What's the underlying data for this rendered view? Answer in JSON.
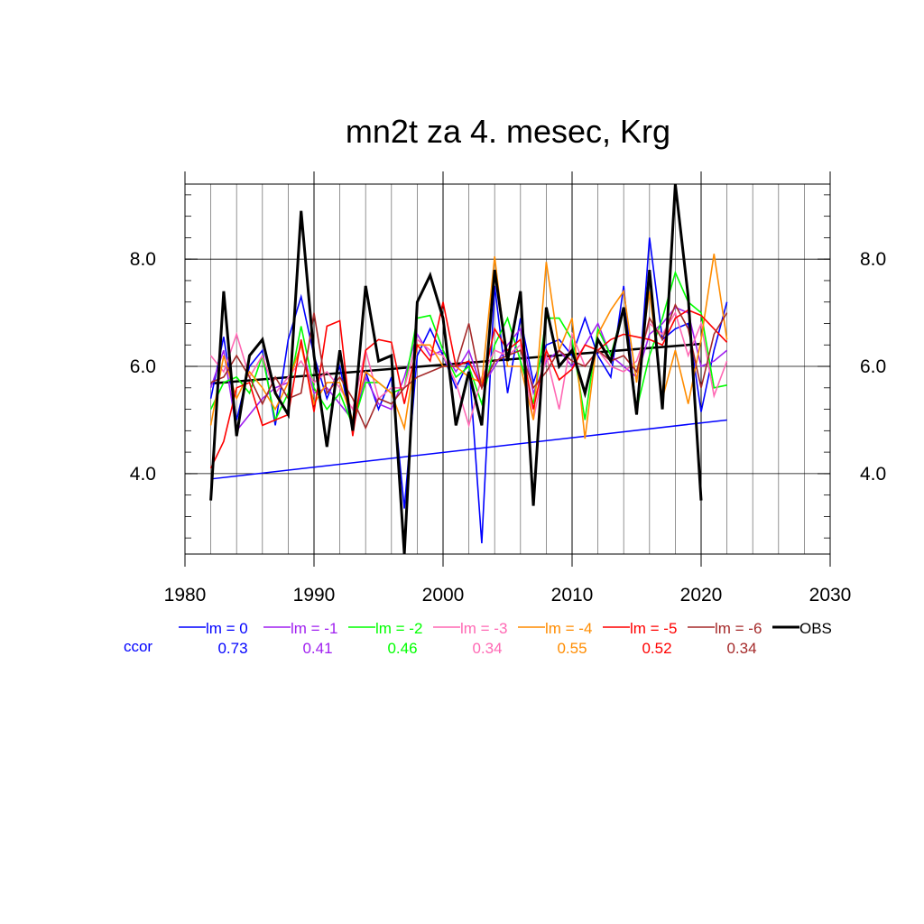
{
  "chart_data": {
    "type": "line",
    "title": "mn2t za 4. mesec, Krg",
    "xlabel": "",
    "ylabel": "",
    "xlim": [
      1980,
      2030
    ],
    "ylim": [
      2.5,
      9.4
    ],
    "x_ticks": [
      1980,
      1990,
      2000,
      2010,
      2020,
      2030
    ],
    "x_tick_labels": [
      "1980",
      "1990",
      "2000",
      "2010",
      "2020",
      "2030"
    ],
    "y_ticks": [
      4.0,
      6.0,
      8.0
    ],
    "y_tick_labels": [
      "4.0",
      "6.0",
      "8.0"
    ],
    "grid": true,
    "legend_position": "bottom",
    "ccor_label": "ccor",
    "series": [
      {
        "name": "lm = 0",
        "color": "#0000ff",
        "ccor": "0.73",
        "x": [
          1982,
          1983,
          1984,
          1985,
          1986,
          1987,
          1988,
          1989,
          1990,
          1991,
          1992,
          1993,
          1994,
          1995,
          1996,
          1997,
          1998,
          1999,
          2000,
          2001,
          2002,
          2003,
          2004,
          2005,
          2006,
          2007,
          2008,
          2009,
          2010,
          2011,
          2012,
          2013,
          2014,
          2015,
          2016,
          2017,
          2018,
          2019,
          2020,
          2021,
          2022
        ],
        "values": [
          5.4,
          6.55,
          5.0,
          6.0,
          6.3,
          4.9,
          6.5,
          7.3,
          6.2,
          5.4,
          6.0,
          4.8,
          5.9,
          5.2,
          5.8,
          3.35,
          6.2,
          6.7,
          6.2,
          5.6,
          6.1,
          2.7,
          7.5,
          5.5,
          6.9,
          5.7,
          6.4,
          6.5,
          6.2,
          6.9,
          6.2,
          5.8,
          7.5,
          5.1,
          8.4,
          6.5,
          6.7,
          6.8,
          5.15,
          6.3,
          7.2
        ]
      },
      {
        "name": "lm = -1",
        "color": "#a020f0",
        "ccor": "0.41",
        "x": [
          1982,
          1983,
          1984,
          1985,
          1986,
          1987,
          1988,
          1989,
          1990,
          1991,
          1992,
          1993,
          1994,
          1995,
          1996,
          1997,
          1998,
          1999,
          2000,
          2001,
          2002,
          2003,
          2004,
          2005,
          2006,
          2007,
          2008,
          2009,
          2010,
          2011,
          2012,
          2013,
          2014,
          2015,
          2016,
          2017,
          2018,
          2019,
          2020,
          2021,
          2022
        ],
        "values": [
          5.6,
          6.3,
          4.8,
          5.1,
          5.4,
          5.6,
          5.7,
          6.4,
          5.5,
          5.6,
          5.3,
          5.0,
          5.8,
          5.3,
          5.2,
          5.8,
          6.6,
          6.2,
          6.3,
          5.9,
          6.3,
          5.6,
          6.0,
          6.4,
          6.7,
          5.5,
          6.1,
          6.3,
          6.0,
          6.4,
          6.8,
          6.2,
          6.0,
          5.8,
          6.6,
          6.8,
          7.1,
          7.0,
          6.0,
          6.1,
          6.3
        ]
      },
      {
        "name": "lm = -2",
        "color": "#00ff00",
        "ccor": "0.46",
        "x": [
          1982,
          1983,
          1984,
          1985,
          1986,
          1987,
          1988,
          1989,
          1990,
          1991,
          1992,
          1993,
          1994,
          1995,
          1996,
          1997,
          1998,
          1999,
          2000,
          2001,
          2002,
          2003,
          2004,
          2005,
          2006,
          2007,
          2008,
          2009,
          2010,
          2011,
          2012,
          2013,
          2014,
          2015,
          2016,
          2017,
          2018,
          2019,
          2020,
          2021,
          2022
        ],
        "values": [
          5.2,
          5.7,
          5.8,
          5.5,
          6.2,
          5.0,
          5.5,
          6.75,
          5.6,
          5.2,
          5.5,
          4.9,
          5.7,
          5.7,
          5.5,
          5.6,
          6.9,
          6.95,
          6.3,
          5.8,
          6.0,
          5.3,
          6.4,
          6.9,
          6.1,
          5.3,
          6.9,
          6.9,
          6.5,
          5.0,
          6.7,
          6.2,
          7.1,
          5.2,
          6.2,
          6.9,
          7.75,
          7.2,
          7.0,
          5.6,
          5.65
        ]
      },
      {
        "name": "lm = -3",
        "color": "#ff69b4",
        "ccor": "0.34",
        "x": [
          1982,
          1983,
          1984,
          1985,
          1986,
          1987,
          1988,
          1989,
          1990,
          1991,
          1992,
          1993,
          1994,
          1995,
          1996,
          1997,
          1998,
          1999,
          2000,
          2001,
          2002,
          2003,
          2004,
          2005,
          2006,
          2007,
          2008,
          2009,
          2010,
          2011,
          2012,
          2013,
          2014,
          2015,
          2016,
          2017,
          2018,
          2019,
          2020,
          2021,
          2022
        ],
        "values": [
          6.2,
          5.9,
          6.6,
          5.8,
          6.2,
          5.5,
          5.8,
          6.1,
          5.7,
          5.9,
          5.6,
          5.2,
          6.3,
          5.4,
          5.6,
          5.6,
          6.5,
          6.3,
          6.2,
          5.7,
          4.9,
          5.8,
          6.3,
          6.2,
          6.4,
          5.0,
          6.2,
          5.2,
          6.6,
          6.0,
          6.3,
          6.0,
          5.9,
          6.1,
          6.8,
          6.6,
          7.0,
          6.2,
          6.8,
          5.45,
          6.1
        ]
      },
      {
        "name": "lm = -4",
        "color": "#ff8c00",
        "ccor": "0.55",
        "x": [
          1982,
          1983,
          1984,
          1985,
          1986,
          1987,
          1988,
          1989,
          1990,
          1991,
          1992,
          1993,
          1994,
          1995,
          1996,
          1997,
          1998,
          1999,
          2000,
          2001,
          2002,
          2003,
          2004,
          2005,
          2006,
          2007,
          2008,
          2009,
          2010,
          2011,
          2012,
          2013,
          2014,
          2015,
          2016,
          2017,
          2018,
          2019,
          2020,
          2021,
          2022
        ],
        "values": [
          4.9,
          6.2,
          5.4,
          5.9,
          5.6,
          5.2,
          5.7,
          6.4,
          5.3,
          5.7,
          5.7,
          5.0,
          5.9,
          5.7,
          5.5,
          4.85,
          6.4,
          6.4,
          6.0,
          6.0,
          5.8,
          5.7,
          8.05,
          6.0,
          6.0,
          5.0,
          7.95,
          6.3,
          6.9,
          4.65,
          6.6,
          7.05,
          7.4,
          5.7,
          7.4,
          5.4,
          6.3,
          5.3,
          6.5,
          8.1,
          6.5
        ]
      },
      {
        "name": "lm = -5",
        "color": "#ff0000",
        "ccor": "0.52",
        "x": [
          1982,
          1983,
          1984,
          1985,
          1986,
          1987,
          1988,
          1989,
          1990,
          1991,
          1992,
          1993,
          1994,
          1995,
          1996,
          1997,
          1998,
          1999,
          2000,
          2001,
          2002,
          2003,
          2004,
          2005,
          2006,
          2007,
          2008,
          2009,
          2010,
          2011,
          2012,
          2013,
          2014,
          2015,
          2016,
          2017,
          2018,
          2019,
          2020,
          2021,
          2022
        ],
        "values": [
          4.1,
          4.6,
          5.6,
          5.7,
          4.9,
          5.0,
          5.1,
          6.5,
          5.15,
          6.75,
          6.85,
          4.7,
          6.3,
          6.5,
          6.45,
          5.3,
          6.4,
          6.1,
          7.2,
          6.0,
          6.1,
          5.6,
          6.7,
          6.3,
          6.5,
          5.2,
          6.3,
          5.75,
          5.95,
          6.4,
          6.3,
          6.5,
          6.6,
          6.55,
          6.5,
          6.4,
          6.9,
          7.05,
          6.95,
          6.7,
          6.45
        ]
      },
      {
        "name": "lm = -6",
        "color": "#a52a2a",
        "ccor": "0.34",
        "x": [
          1982,
          1983,
          1984,
          1985,
          1986,
          1987,
          1988,
          1989,
          1990,
          1991,
          1992,
          1993,
          1994,
          1995,
          1996,
          1997,
          1998,
          1999,
          2000,
          2001,
          2002,
          2003,
          2004,
          2005,
          2006,
          2007,
          2008,
          2009,
          2010,
          2011,
          2012,
          2013,
          2014,
          2015,
          2016,
          2017,
          2018,
          2019,
          2020,
          2021,
          2022
        ],
        "values": [
          5.7,
          5.8,
          6.2,
          5.8,
          5.3,
          5.8,
          5.4,
          5.5,
          7.0,
          5.5,
          5.8,
          5.4,
          4.85,
          5.4,
          5.3,
          5.6,
          5.8,
          5.9,
          6.0,
          6.0,
          6.8,
          5.6,
          6.1,
          6.2,
          6.3,
          5.6,
          5.9,
          6.3,
          6.1,
          6.0,
          6.3,
          6.1,
          6.2,
          5.9,
          6.9,
          6.5,
          7.15,
          6.7,
          5.6,
          6.6,
          7.0
        ]
      },
      {
        "name": "OBS",
        "color": "#000000",
        "ccor": "",
        "x": [
          1982,
          1983,
          1984,
          1985,
          1986,
          1987,
          1988,
          1989,
          1990,
          1991,
          1992,
          1993,
          1994,
          1995,
          1996,
          1997,
          1998,
          1999,
          2000,
          2001,
          2002,
          2003,
          2004,
          2005,
          2006,
          2007,
          2008,
          2009,
          2010,
          2011,
          2012,
          2013,
          2014,
          2015,
          2016,
          2017,
          2018,
          2019,
          2020
        ],
        "values": [
          3.5,
          7.4,
          4.7,
          6.2,
          6.5,
          5.5,
          5.1,
          8.9,
          6.2,
          4.5,
          6.3,
          4.8,
          7.5,
          6.1,
          6.2,
          2.5,
          7.2,
          7.7,
          6.9,
          4.9,
          5.9,
          4.9,
          7.8,
          6.1,
          7.4,
          3.4,
          7.1,
          6.0,
          6.3,
          5.5,
          6.5,
          6.1,
          7.1,
          5.1,
          7.8,
          5.2,
          9.4,
          7.3,
          3.5
        ]
      }
    ],
    "trend_lines": [
      {
        "color": "#0000ff",
        "x": [
          1982,
          2022
        ],
        "values": [
          3.9,
          5.0
        ]
      },
      {
        "color": "#000000",
        "x": [
          1982,
          2020
        ],
        "values": [
          5.68,
          6.42
        ]
      }
    ]
  }
}
